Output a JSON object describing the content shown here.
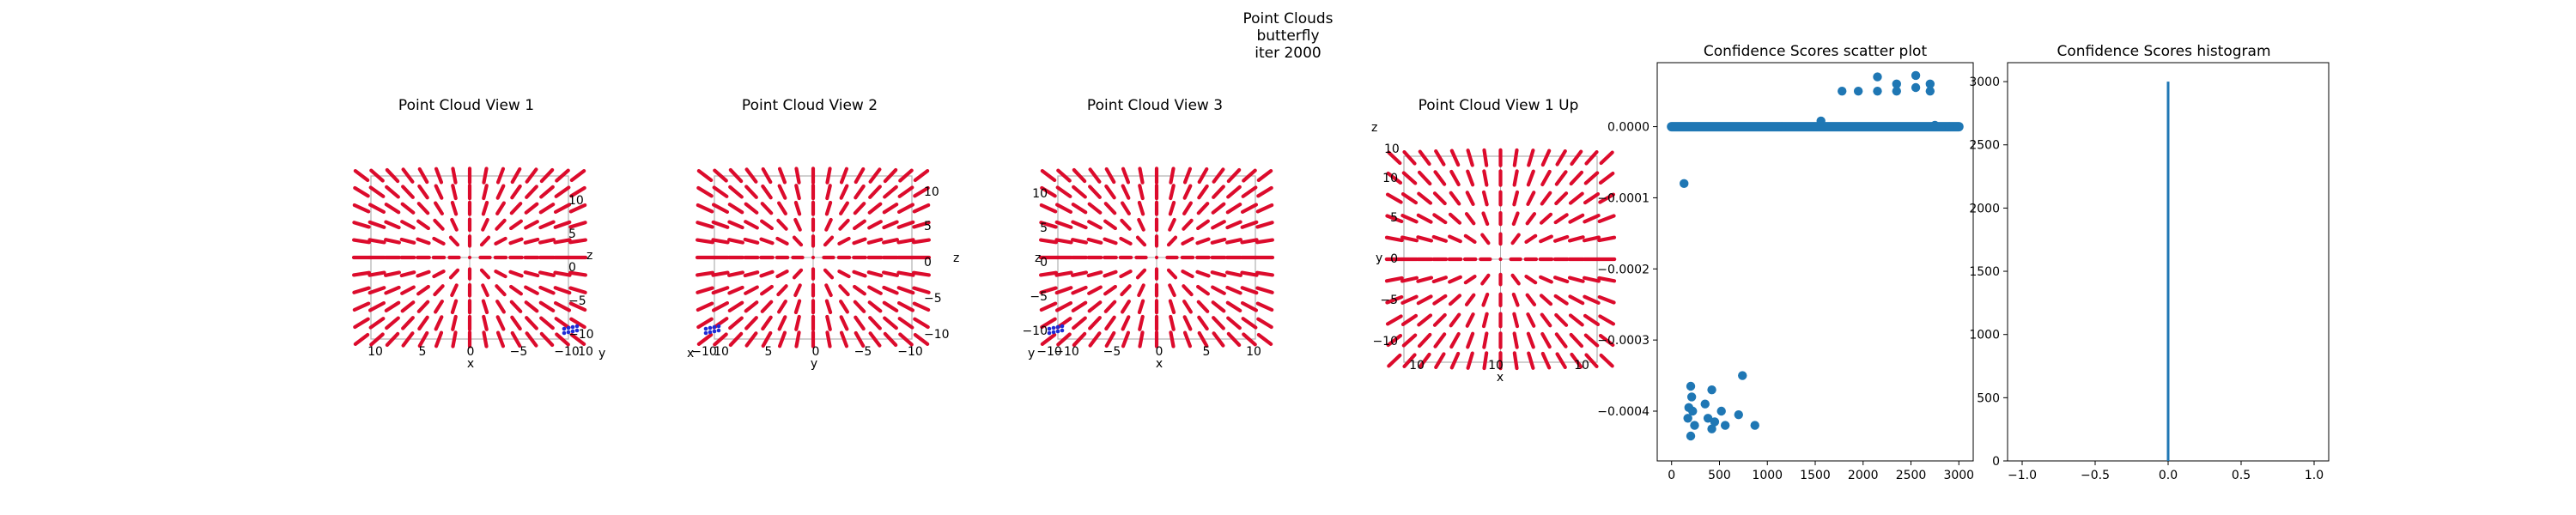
{
  "figure": {
    "suptitle": [
      "Point Clouds",
      "butterfly",
      "iter 2000"
    ]
  },
  "colors": {
    "points": "#dc0b2c",
    "highlight": "#1f2bd6",
    "series": "#1f77b4",
    "axes_box": "#b0b0b0"
  },
  "panels": [
    {
      "title": "Point Cloud View 1",
      "xlabel": "x",
      "side_label": "y",
      "right_label": "z",
      "bottom_ticks": [
        "10",
        "5",
        "0",
        "−5",
        "−10"
      ],
      "side_ticks": [
        "10"
      ],
      "right_ticks": [
        "10",
        "5",
        "0",
        "−5",
        "−10"
      ]
    },
    {
      "title": "Point Cloud View 2",
      "xlabel": "y",
      "side_label": "x",
      "right_label": "z",
      "bottom_ticks": [
        "10",
        "5",
        "0",
        "−5",
        "−10"
      ],
      "side_ticks": [
        "−10"
      ],
      "right_ticks": [
        "10",
        "5",
        "0",
        "−5",
        "−10"
      ]
    },
    {
      "title": "Point Cloud View 3",
      "xlabel": "x",
      "side_label": "y",
      "right_label": "z",
      "bottom_ticks": [
        "−10",
        "−5",
        "0",
        "5",
        "10"
      ],
      "side_ticks": [
        "−10"
      ],
      "right_ticks": [
        "10",
        "5",
        "0",
        "−5",
        "−10"
      ]
    },
    {
      "title": "Point Cloud View 1 Up",
      "xlabel": "x",
      "side_label": "y",
      "right_label": "z",
      "bottom_ticks": [
        "10",
        "10"
      ],
      "side_ticks": [
        "10",
        "5",
        "0",
        "−5",
        "−10"
      ],
      "right_ticks": [
        "10",
        "10"
      ]
    }
  ],
  "chart_data": [
    {
      "type": "scatter",
      "title": "Confidence Scores scatter plot",
      "xlabel": "",
      "ylabel": "",
      "xlim": [
        -150,
        3150
      ],
      "ylim": [
        -0.00047,
        9e-05
      ],
      "xticks": [
        0,
        500,
        1000,
        1500,
        2000,
        2500,
        3000
      ],
      "yticks": [
        0.0,
        -0.0001,
        -0.0002,
        -0.0003,
        -0.0004
      ],
      "ytick_labels": [
        "0.0000",
        "−0.0001",
        "−0.0002",
        "−0.0003",
        "−0.0004"
      ],
      "band": {
        "x_start": 0,
        "x_end": 3000,
        "y": 0.0
      },
      "points": [
        [
          130,
          -8e-05
        ],
        [
          200,
          -0.000365
        ],
        [
          210,
          -0.00038
        ],
        [
          180,
          -0.000395
        ],
        [
          220,
          -0.0004
        ],
        [
          170,
          -0.00041
        ],
        [
          240,
          -0.00042
        ],
        [
          200,
          -0.000435
        ],
        [
          350,
          -0.00039
        ],
        [
          420,
          -0.00037
        ],
        [
          380,
          -0.00041
        ],
        [
          420,
          -0.000425
        ],
        [
          450,
          -0.000415
        ],
        [
          520,
          -0.0004
        ],
        [
          560,
          -0.00042
        ],
        [
          700,
          -0.000405
        ],
        [
          740,
          -0.00035
        ],
        [
          870,
          -0.00042
        ],
        [
          1150,
          0.0
        ],
        [
          1500,
          0.0
        ],
        [
          1560,
          8e-06
        ],
        [
          1780,
          5e-05
        ],
        [
          1950,
          5e-05
        ],
        [
          2150,
          7e-05
        ],
        [
          2150,
          5e-05
        ],
        [
          2350,
          5e-05
        ],
        [
          2350,
          6e-05
        ],
        [
          2550,
          7.2e-05
        ],
        [
          2550,
          5.5e-05
        ],
        [
          2700,
          5e-05
        ],
        [
          2700,
          6e-05
        ],
        [
          2750,
          2e-06
        ],
        [
          2900,
          0.0
        ]
      ]
    },
    {
      "type": "bar",
      "title": "Confidence Scores histogram",
      "xlabel": "",
      "ylabel": "",
      "xlim": [
        -1.1,
        1.1
      ],
      "ylim": [
        0,
        3150
      ],
      "xticks": [
        -1.0,
        -0.5,
        0.0,
        0.5,
        1.0
      ],
      "xtick_labels": [
        "−1.0",
        "−0.5",
        "0.0",
        "0.5",
        "1.0"
      ],
      "yticks": [
        0,
        500,
        1000,
        1500,
        2000,
        2500,
        3000
      ],
      "bins": [
        {
          "x": 0.0,
          "count": 3000
        }
      ]
    }
  ]
}
